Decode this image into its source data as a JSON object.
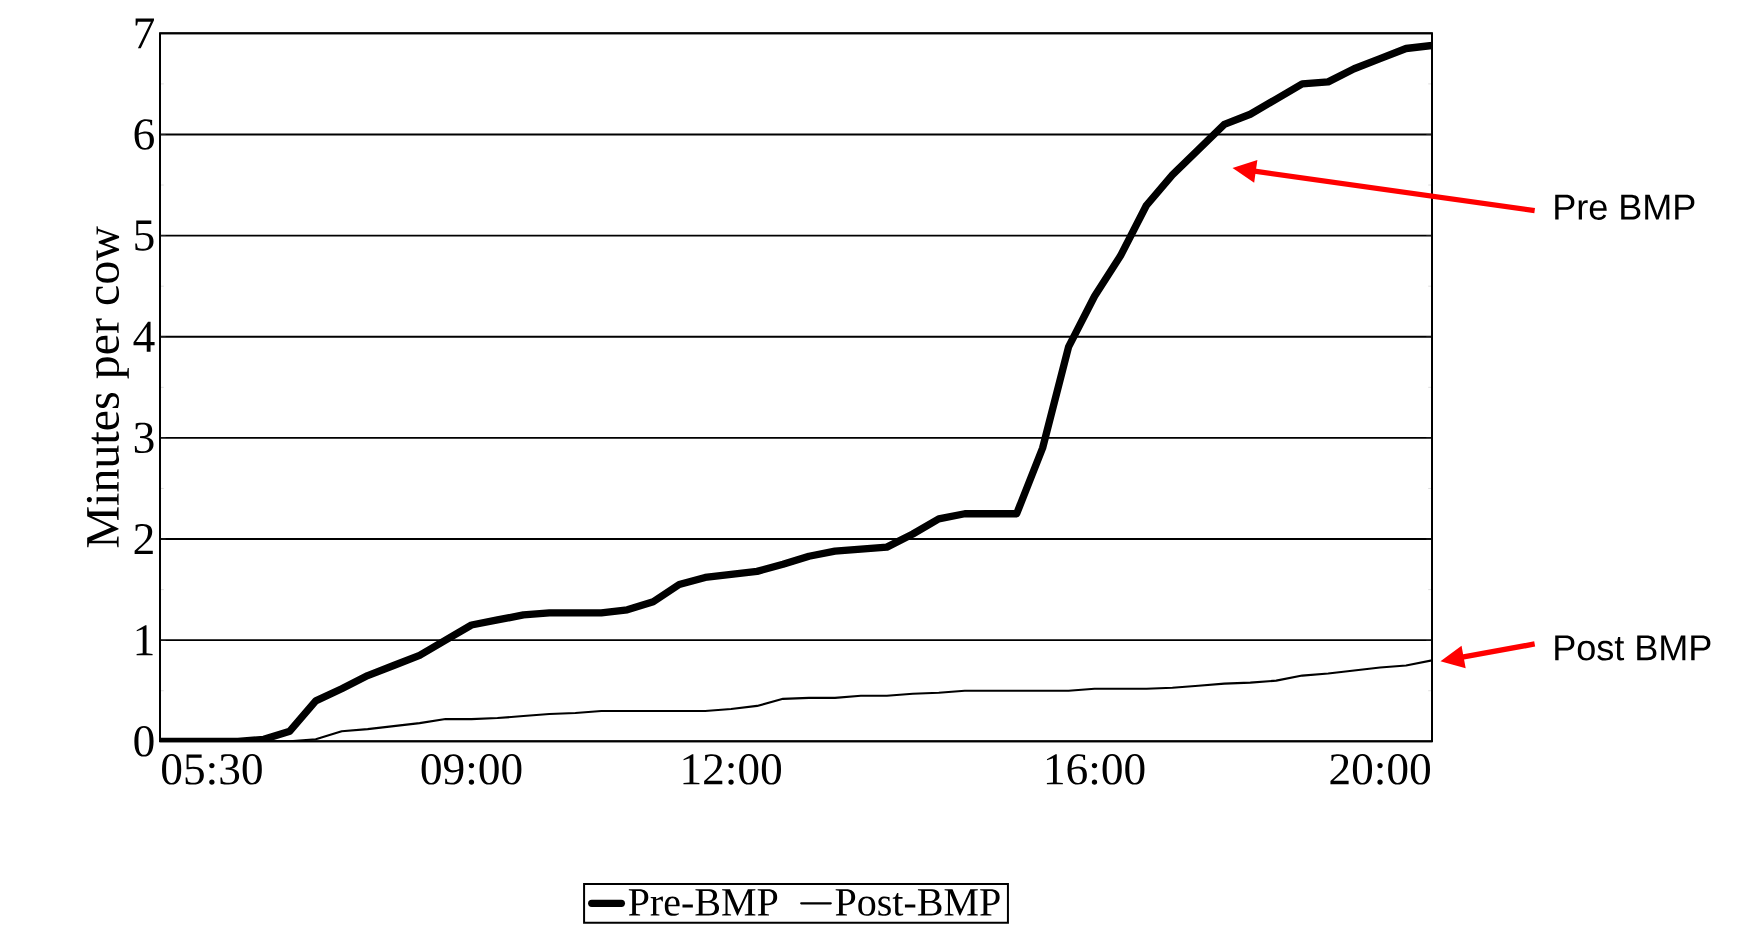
{
  "chart_data": {
    "type": "line",
    "ylabel": "Minutes per cow",
    "categories": [
      null,
      null,
      "05:30",
      null,
      null,
      null,
      null,
      null,
      null,
      null,
      null,
      null,
      "09:00",
      null,
      null,
      null,
      null,
      null,
      null,
      null,
      null,
      null,
      "12:00",
      null,
      null,
      null,
      null,
      null,
      null,
      null,
      null,
      null,
      null,
      null,
      null,
      null,
      "16:00",
      null,
      null,
      null,
      null,
      null,
      null,
      null,
      null,
      null,
      null,
      "20:00",
      null,
      null
    ],
    "series": [
      {
        "name": "Pre-BMP",
        "color": "#000000",
        "values": [
          0,
          0,
          0,
          0,
          0.02,
          0.1,
          0.4,
          0.52,
          0.65,
          0.75,
          0.85,
          1.0,
          1.15,
          1.2,
          1.25,
          1.27,
          1.27,
          1.27,
          1.3,
          1.38,
          1.55,
          1.62,
          1.65,
          1.68,
          1.75,
          1.83,
          1.88,
          1.9,
          1.92,
          2.05,
          2.2,
          2.25,
          2.25,
          2.25,
          2.9,
          3.9,
          4.4,
          4.8,
          5.3,
          5.6,
          5.85,
          6.1,
          6.2,
          6.35,
          6.5,
          6.52,
          6.65,
          6.75,
          6.85,
          6.88
        ]
      },
      {
        "name": "Post-BMP",
        "color": "#000000",
        "values": [
          0,
          0,
          0,
          0,
          0,
          0,
          0.02,
          0.1,
          0.12,
          0.15,
          0.18,
          0.22,
          0.22,
          0.23,
          0.25,
          0.27,
          0.28,
          0.3,
          0.3,
          0.3,
          0.3,
          0.3,
          0.32,
          0.35,
          0.42,
          0.43,
          0.43,
          0.45,
          0.45,
          0.47,
          0.48,
          0.5,
          0.5,
          0.5,
          0.5,
          0.5,
          0.52,
          0.52,
          0.52,
          0.53,
          0.55,
          0.57,
          0.58,
          0.6,
          0.65,
          0.67,
          0.7,
          0.73,
          0.75,
          0.8
        ]
      }
    ],
    "ylim": [
      0,
      7
    ],
    "yticks": [
      0,
      1,
      2,
      3,
      4,
      5,
      6,
      7
    ],
    "grid": "y",
    "legend": "bottom",
    "annotations": [
      "Pre BMP",
      "Post BMP"
    ]
  }
}
